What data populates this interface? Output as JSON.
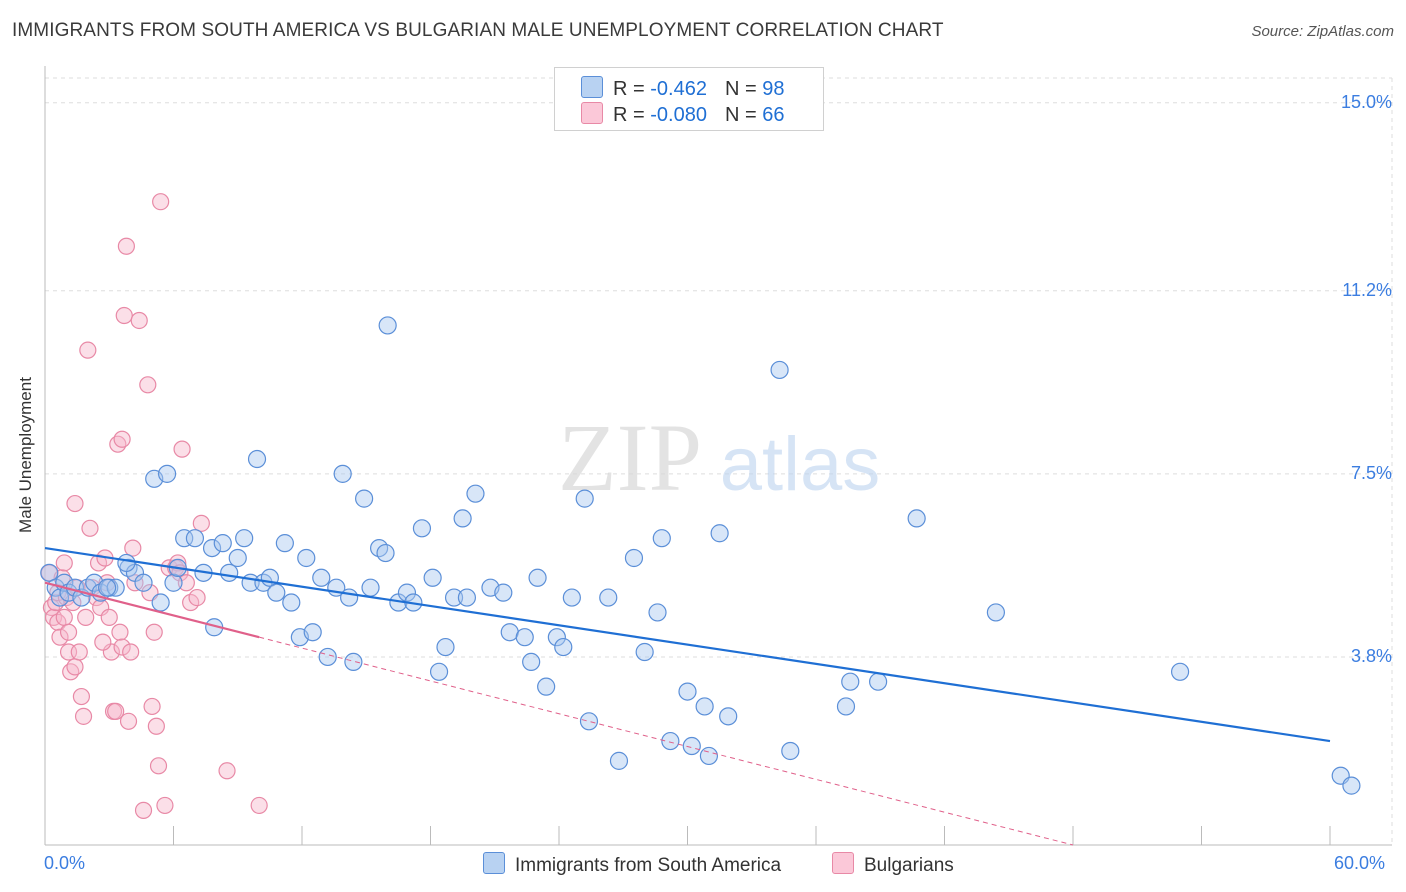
{
  "title": "IMMIGRANTS FROM SOUTH AMERICA VS BULGARIAN MALE UNEMPLOYMENT CORRELATION CHART",
  "source": "Source: ZipAtlas.com",
  "legend": {
    "series1": {
      "r_label": "R = ",
      "r_value": "-0.462",
      "n_label": "N = ",
      "n_value": "98"
    },
    "series2": {
      "r_label": "R = ",
      "r_value": "-0.080",
      "n_label": "N = ",
      "n_value": "66"
    }
  },
  "bottom_legend": [
    "Immigrants from South America",
    "Bulgarians"
  ],
  "colors": {
    "blue_fill": "#a8c8f0",
    "blue_stroke": "#5b8fd8",
    "blue_line": "#1f6fd4",
    "pink_fill": "#f7b8cb",
    "pink_stroke": "#e889a6",
    "pink_line": "#e0608a",
    "tick_label": "#3b7de0",
    "grid": "#dddddd"
  },
  "watermark": {
    "zip": "ZIP",
    "atlas": "atlas"
  },
  "chart_data": {
    "type": "scatter",
    "title": "IMMIGRANTS FROM SOUTH AMERICA VS BULGARIAN MALE UNEMPLOYMENT CORRELATION CHART",
    "xlabel": "",
    "ylabel": "Male Unemployment",
    "xlim": [
      0,
      60
    ],
    "ylim": [
      0,
      15.5
    ],
    "x_tick_labels": [
      "0.0%",
      "60.0%"
    ],
    "y_ticks": [
      {
        "value": 3.8,
        "label": "3.8%"
      },
      {
        "value": 7.5,
        "label": "7.5%"
      },
      {
        "value": 11.2,
        "label": "11.2%"
      },
      {
        "value": 15.0,
        "label": "15.0%"
      }
    ],
    "grid": true,
    "series": [
      {
        "name": "Immigrants from South America",
        "color": "#5b8fd8",
        "R": -0.462,
        "N": 98,
        "trend": {
          "x0": 0,
          "y0": 6.0,
          "x1": 60,
          "y1": 2.1
        },
        "points": [
          [
            0.2,
            5.5
          ],
          [
            0.5,
            5.2
          ],
          [
            0.7,
            5.0
          ],
          [
            0.9,
            5.3
          ],
          [
            1.1,
            5.1
          ],
          [
            1.4,
            5.2
          ],
          [
            1.7,
            5.0
          ],
          [
            2.0,
            5.2
          ],
          [
            2.3,
            5.3
          ],
          [
            2.6,
            5.1
          ],
          [
            3.0,
            5.2
          ],
          [
            3.3,
            5.2
          ],
          [
            3.9,
            5.6
          ],
          [
            4.2,
            5.5
          ],
          [
            4.6,
            5.3
          ],
          [
            5.1,
            7.4
          ],
          [
            5.4,
            4.9
          ],
          [
            5.7,
            7.5
          ],
          [
            6.0,
            5.3
          ],
          [
            6.2,
            5.6
          ],
          [
            6.5,
            6.2
          ],
          [
            7.0,
            6.2
          ],
          [
            7.4,
            5.5
          ],
          [
            7.8,
            6.0
          ],
          [
            7.9,
            4.4
          ],
          [
            8.3,
            6.1
          ],
          [
            8.6,
            5.5
          ],
          [
            9.0,
            5.8
          ],
          [
            9.3,
            6.2
          ],
          [
            9.6,
            5.3
          ],
          [
            9.9,
            7.8
          ],
          [
            10.2,
            5.3
          ],
          [
            10.5,
            5.4
          ],
          [
            10.8,
            5.1
          ],
          [
            11.2,
            6.1
          ],
          [
            11.5,
            4.9
          ],
          [
            11.9,
            4.2
          ],
          [
            12.2,
            5.8
          ],
          [
            12.5,
            4.3
          ],
          [
            12.9,
            5.4
          ],
          [
            13.2,
            3.8
          ],
          [
            13.6,
            5.2
          ],
          [
            13.9,
            7.5
          ],
          [
            14.2,
            5.0
          ],
          [
            14.4,
            3.7
          ],
          [
            14.9,
            7.0
          ],
          [
            15.2,
            5.2
          ],
          [
            15.6,
            6.0
          ],
          [
            15.9,
            5.9
          ],
          [
            16.0,
            10.5
          ],
          [
            16.5,
            4.9
          ],
          [
            16.9,
            5.1
          ],
          [
            17.2,
            4.9
          ],
          [
            17.6,
            6.4
          ],
          [
            18.1,
            5.4
          ],
          [
            18.4,
            3.5
          ],
          [
            18.7,
            4.0
          ],
          [
            19.1,
            5.0
          ],
          [
            19.5,
            6.6
          ],
          [
            19.7,
            5.0
          ],
          [
            20.1,
            7.1
          ],
          [
            20.8,
            5.2
          ],
          [
            21.4,
            5.1
          ],
          [
            21.7,
            4.3
          ],
          [
            22.4,
            4.2
          ],
          [
            22.7,
            3.7
          ],
          [
            23.0,
            5.4
          ],
          [
            23.4,
            3.2
          ],
          [
            23.9,
            4.2
          ],
          [
            24.2,
            4.0
          ],
          [
            24.6,
            5.0
          ],
          [
            25.2,
            7.0
          ],
          [
            25.4,
            2.5
          ],
          [
            26.3,
            5.0
          ],
          [
            26.8,
            1.7
          ],
          [
            27.5,
            5.8
          ],
          [
            28.0,
            3.9
          ],
          [
            28.6,
            4.7
          ],
          [
            28.8,
            6.2
          ],
          [
            29.2,
            2.1
          ],
          [
            30.0,
            3.1
          ],
          [
            30.2,
            2.0
          ],
          [
            30.8,
            2.8
          ],
          [
            31.0,
            1.8
          ],
          [
            31.5,
            6.3
          ],
          [
            31.9,
            2.6
          ],
          [
            34.3,
            9.6
          ],
          [
            34.8,
            1.9
          ],
          [
            37.4,
            2.8
          ],
          [
            37.6,
            3.3
          ],
          [
            38.9,
            3.3
          ],
          [
            40.7,
            6.6
          ],
          [
            44.4,
            4.7
          ],
          [
            53.0,
            3.5
          ],
          [
            60.5,
            1.4
          ],
          [
            61.0,
            1.2
          ],
          [
            3.8,
            5.7
          ],
          [
            2.9,
            5.2
          ]
        ]
      },
      {
        "name": "Bulgarians",
        "color": "#e889a6",
        "R": -0.08,
        "N": 66,
        "trend_solid": {
          "x0": 0,
          "y0": 5.3,
          "x1": 10,
          "y1": 4.2
        },
        "trend_dashed": {
          "x0": 10,
          "y0": 4.2,
          "x1": 48,
          "y1": 0.0
        },
        "points": [
          [
            0.2,
            5.5
          ],
          [
            0.3,
            4.8
          ],
          [
            0.4,
            4.6
          ],
          [
            0.5,
            4.9
          ],
          [
            0.6,
            4.5
          ],
          [
            0.6,
            5.1
          ],
          [
            0.7,
            4.2
          ],
          [
            0.8,
            5.4
          ],
          [
            0.9,
            4.6
          ],
          [
            1.0,
            5.0
          ],
          [
            1.1,
            4.3
          ],
          [
            1.1,
            3.9
          ],
          [
            1.2,
            3.5
          ],
          [
            1.3,
            4.9
          ],
          [
            1.4,
            6.9
          ],
          [
            1.4,
            3.6
          ],
          [
            1.5,
            5.2
          ],
          [
            1.6,
            3.9
          ],
          [
            1.7,
            3.0
          ],
          [
            1.8,
            2.6
          ],
          [
            1.9,
            4.6
          ],
          [
            2.0,
            10.0
          ],
          [
            2.1,
            6.4
          ],
          [
            2.2,
            5.2
          ],
          [
            2.4,
            5.0
          ],
          [
            2.5,
            5.7
          ],
          [
            2.6,
            4.8
          ],
          [
            2.8,
            5.8
          ],
          [
            2.9,
            5.3
          ],
          [
            3.0,
            4.6
          ],
          [
            3.1,
            3.9
          ],
          [
            3.2,
            2.7
          ],
          [
            3.3,
            2.7
          ],
          [
            3.4,
            8.1
          ],
          [
            3.5,
            4.3
          ],
          [
            3.6,
            4.0
          ],
          [
            3.7,
            10.7
          ],
          [
            3.8,
            12.1
          ],
          [
            3.9,
            2.5
          ],
          [
            4.0,
            3.9
          ],
          [
            4.1,
            6.0
          ],
          [
            4.2,
            5.3
          ],
          [
            4.4,
            10.6
          ],
          [
            4.6,
            0.7
          ],
          [
            4.8,
            9.3
          ],
          [
            4.9,
            5.1
          ],
          [
            5.0,
            2.8
          ],
          [
            5.1,
            4.3
          ],
          [
            5.2,
            2.4
          ],
          [
            5.3,
            1.6
          ],
          [
            5.4,
            13.0
          ],
          [
            5.6,
            0.8
          ],
          [
            5.8,
            5.6
          ],
          [
            6.1,
            5.6
          ],
          [
            6.2,
            5.7
          ],
          [
            6.3,
            5.5
          ],
          [
            6.4,
            8.0
          ],
          [
            6.6,
            5.3
          ],
          [
            6.8,
            4.9
          ],
          [
            7.1,
            5.0
          ],
          [
            7.3,
            6.5
          ],
          [
            8.5,
            1.5
          ],
          [
            10.0,
            0.8
          ],
          [
            2.7,
            4.1
          ],
          [
            0.9,
            5.7
          ],
          [
            3.6,
            8.2
          ]
        ]
      }
    ]
  }
}
